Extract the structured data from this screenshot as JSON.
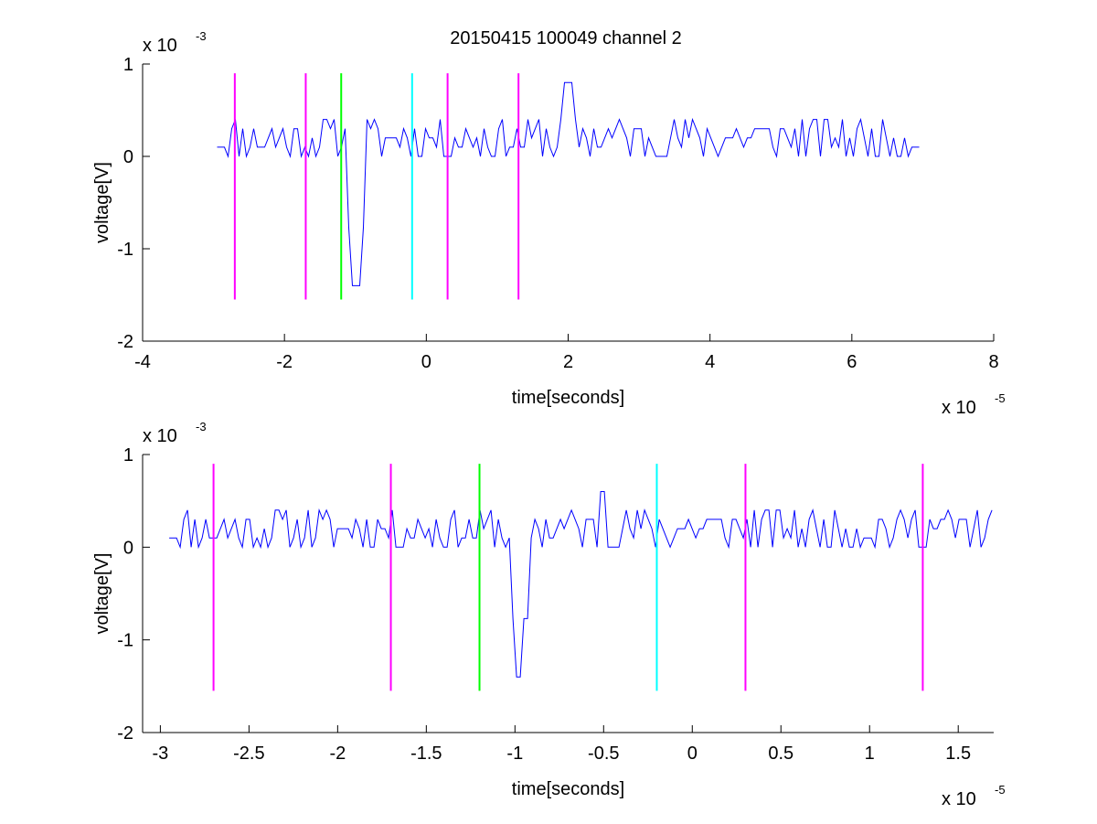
{
  "title": "20150415 100049 channel 2",
  "colors": {
    "signal": "#0000ff",
    "marker_magenta": "#ff00ff",
    "marker_green": "#00ff00",
    "marker_cyan": "#00ffff",
    "axes": "#000000"
  },
  "chart_data": [
    {
      "type": "line",
      "title": "20150415 100049 channel 2",
      "xlabel": "time[seconds]",
      "ylabel": "voltage[V]",
      "x_exponent_label": "x 10",
      "x_exponent": "-5",
      "y_exponent_label": "x 10",
      "y_exponent": "-3",
      "xlim": [
        -4e-05,
        8e-05
      ],
      "ylim": [
        -0.002,
        0.001
      ],
      "xticks": [
        -4e-05,
        -2e-05,
        0,
        2e-05,
        4e-05,
        6e-05,
        8e-05
      ],
      "xtick_labels": [
        "-4",
        "-2",
        "0",
        "2",
        "4",
        "6",
        "8"
      ],
      "yticks": [
        -0.002,
        -0.001,
        0,
        0.001
      ],
      "ytick_labels": [
        "-2",
        "-1",
        "0",
        "1"
      ],
      "grid": false,
      "series": [
        {
          "x_start": -2.95e-05,
          "x_end": 7e-05,
          "seed": 11,
          "baseline": 0.0002,
          "jitter": 0.0002,
          "spikes": [
            {
              "x": -1e-05,
              "value": -0.0014
            },
            {
              "x": 2e-05,
              "value": 0.0008
            }
          ]
        }
      ],
      "markers": [
        {
          "x": -2.7e-05,
          "color": "magenta",
          "y_top": 0.0009,
          "y_bottom": -0.00155
        },
        {
          "x": -1.7e-05,
          "color": "magenta",
          "y_top": 0.0009,
          "y_bottom": -0.00155
        },
        {
          "x": -1.2e-05,
          "color": "green",
          "y_top": 0.0009,
          "y_bottom": -0.00155
        },
        {
          "x": -2e-06,
          "color": "cyan",
          "y_top": 0.0009,
          "y_bottom": -0.00155
        },
        {
          "x": 3e-06,
          "color": "magenta",
          "y_top": 0.0009,
          "y_bottom": -0.00155
        },
        {
          "x": 1.3e-05,
          "color": "magenta",
          "y_top": 0.0009,
          "y_bottom": -0.00155
        }
      ]
    },
    {
      "type": "line",
      "title": "",
      "xlabel": "time[seconds]",
      "ylabel": "voltage[V]",
      "x_exponent_label": "x 10",
      "x_exponent": "-5",
      "y_exponent_label": "x 10",
      "y_exponent": "-3",
      "xlim": [
        -3.1e-05,
        1.7e-05
      ],
      "ylim": [
        -0.002,
        0.001
      ],
      "xticks": [
        -3e-05,
        -2.5e-05,
        -2e-05,
        -1.5e-05,
        -1e-05,
        -5e-06,
        0,
        5e-06,
        1e-05,
        1.5e-05
      ],
      "xtick_labels": [
        "-3",
        "-2.5",
        "-2",
        "-1.5",
        "-1",
        "-0.5",
        "0",
        "0.5",
        "1",
        "1.5"
      ],
      "yticks": [
        -0.002,
        -0.001,
        0,
        0.001
      ],
      "ytick_labels": [
        "-2",
        "-1",
        "0",
        "1"
      ],
      "grid": false,
      "series": [
        {
          "x_start": -2.95e-05,
          "x_end": 1.7e-05,
          "seed": 11,
          "baseline": 0.0002,
          "jitter": 0.0002,
          "spikes": [
            {
              "x": -9.8e-06,
              "value": -0.0014
            },
            {
              "x": -5e-06,
              "value": 0.0006
            }
          ]
        }
      ],
      "markers": [
        {
          "x": -2.7e-05,
          "color": "magenta",
          "y_top": 0.0009,
          "y_bottom": -0.00155
        },
        {
          "x": -1.7e-05,
          "color": "magenta",
          "y_top": 0.0009,
          "y_bottom": -0.00155
        },
        {
          "x": -1.2e-05,
          "color": "green",
          "y_top": 0.0009,
          "y_bottom": -0.00155
        },
        {
          "x": -2e-06,
          "color": "cyan",
          "y_top": 0.0009,
          "y_bottom": -0.00155
        },
        {
          "x": 3e-06,
          "color": "magenta",
          "y_top": 0.0009,
          "y_bottom": -0.00155
        },
        {
          "x": 1.3e-05,
          "color": "magenta",
          "y_top": 0.0009,
          "y_bottom": -0.00155
        }
      ]
    }
  ]
}
